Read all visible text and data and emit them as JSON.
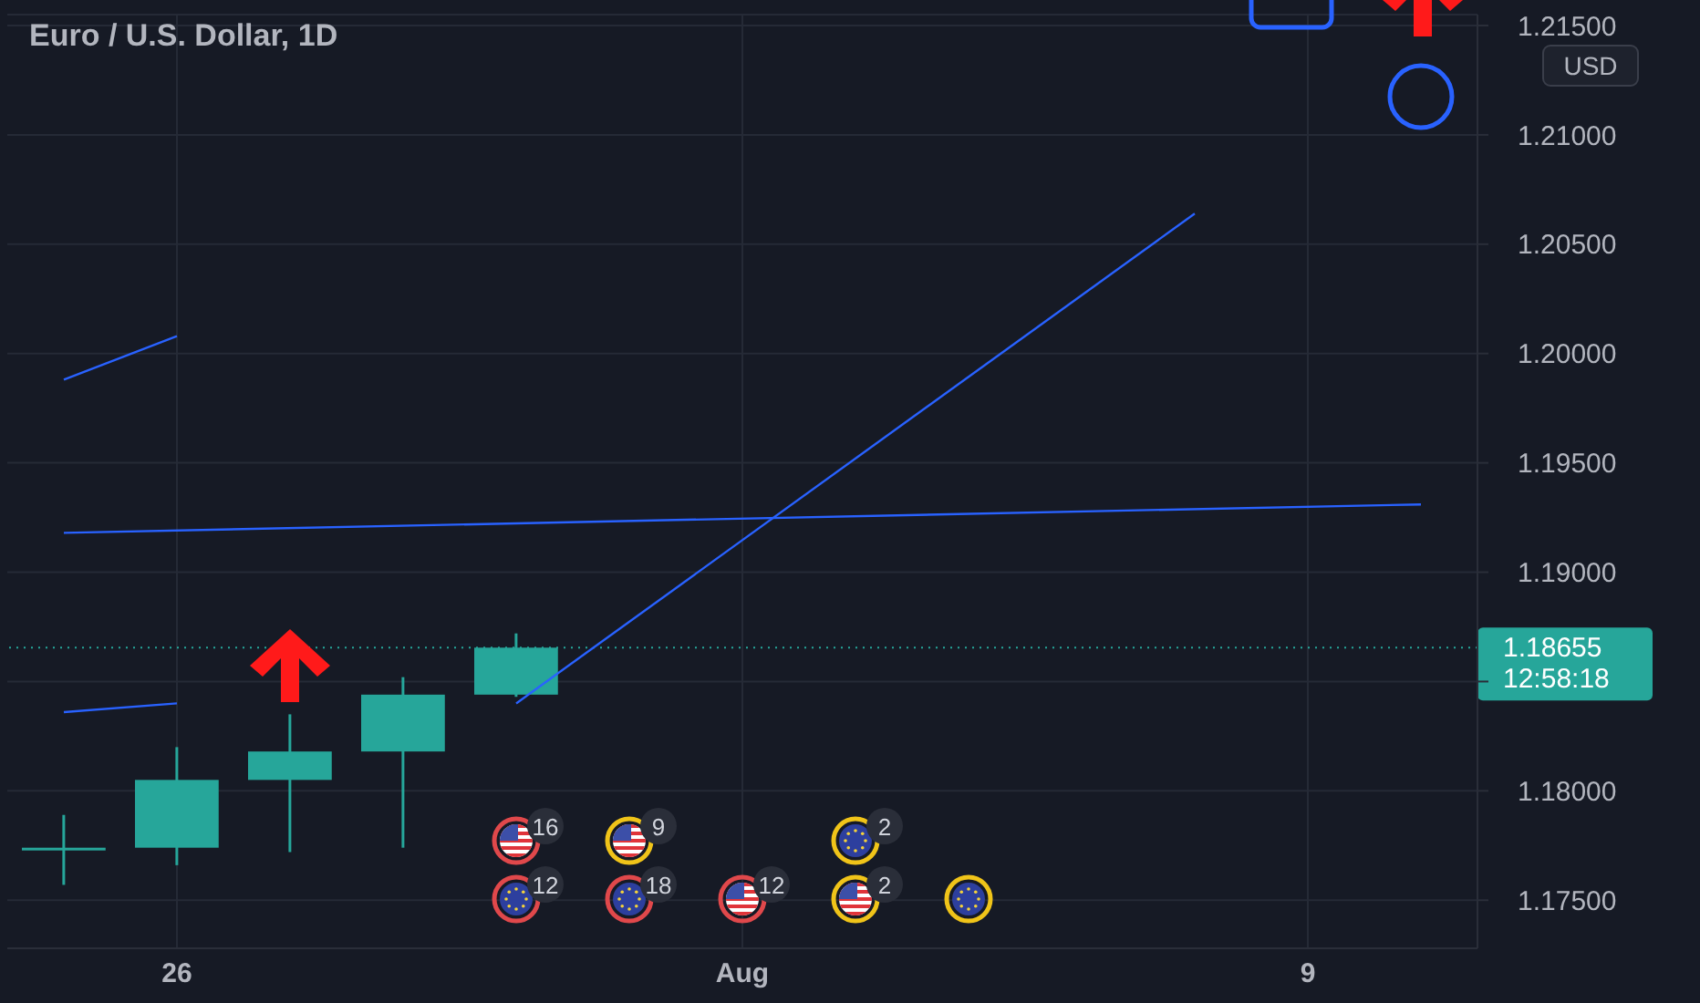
{
  "chart_data": {
    "type": "candlestick",
    "title": "Euro / U.S. Dollar, 1D",
    "categories": [
      null,
      "26",
      null,
      null,
      null,
      null,
      "Aug",
      null,
      null,
      null,
      null,
      "9",
      null
    ],
    "ohlc": [
      [
        1.1774,
        1.1789,
        1.1757,
        1.1774
      ],
      [
        1.1774,
        1.182,
        1.1766,
        1.1805
      ],
      [
        1.1805,
        1.1835,
        1.1772,
        1.1818
      ],
      [
        1.1818,
        1.1852,
        1.1774,
        1.1844
      ],
      [
        1.1844,
        1.1872,
        1.1843,
        1.18655
      ],
      null,
      null,
      null,
      null,
      null,
      null,
      null,
      null
    ],
    "color": "#26a69a",
    "series": [
      {
        "type": "line",
        "color": "#2962ff",
        "values": [
          1.1988,
          1.2008,
          null,
          null,
          null,
          null,
          null,
          null,
          null,
          null,
          null,
          null,
          null
        ]
      },
      {
        "type": "line",
        "color": "#2962ff",
        "values": [
          1.1918,
          null,
          null,
          null,
          null,
          null,
          null,
          null,
          null,
          null,
          null,
          null,
          1.1931
        ]
      },
      {
        "type": "line",
        "color": "#2962ff",
        "values": [
          1.1836,
          1.184,
          null,
          null,
          null,
          null,
          null,
          null,
          null,
          null,
          null,
          null,
          null
        ]
      },
      {
        "type": "line",
        "color": "#2962ff",
        "values": [
          null,
          null,
          null,
          null,
          1.184,
          null,
          null,
          null,
          null,
          null,
          1.2064,
          null,
          null
        ]
      }
    ],
    "ylim": [
      1.1728,
      1.2155
    ],
    "yticks": [
      {
        "value": 1.175,
        "label": "1.17500"
      },
      {
        "value": 1.18,
        "label": "1.18000"
      },
      {
        "value": 1.185,
        "label": null
      },
      {
        "value": 1.19,
        "label": "1.19000"
      },
      {
        "value": 1.195,
        "label": "1.19500"
      },
      {
        "value": 1.2,
        "label": "1.20000"
      },
      {
        "value": 1.205,
        "label": "1.20500"
      },
      {
        "value": 1.21,
        "label": "1.21000"
      },
      {
        "value": 1.215,
        "label": "1.21500"
      }
    ],
    "grid": true,
    "ref_lines": [
      {
        "axis": "y",
        "value": 1.18655,
        "label": "1.18655",
        "color": "#26a69a",
        "line_style": "dotted"
      }
    ],
    "annotations": [
      "USD",
      "12:58:18",
      "16",
      "9",
      "2",
      "12",
      "18",
      "12",
      "2"
    ]
  }
}
